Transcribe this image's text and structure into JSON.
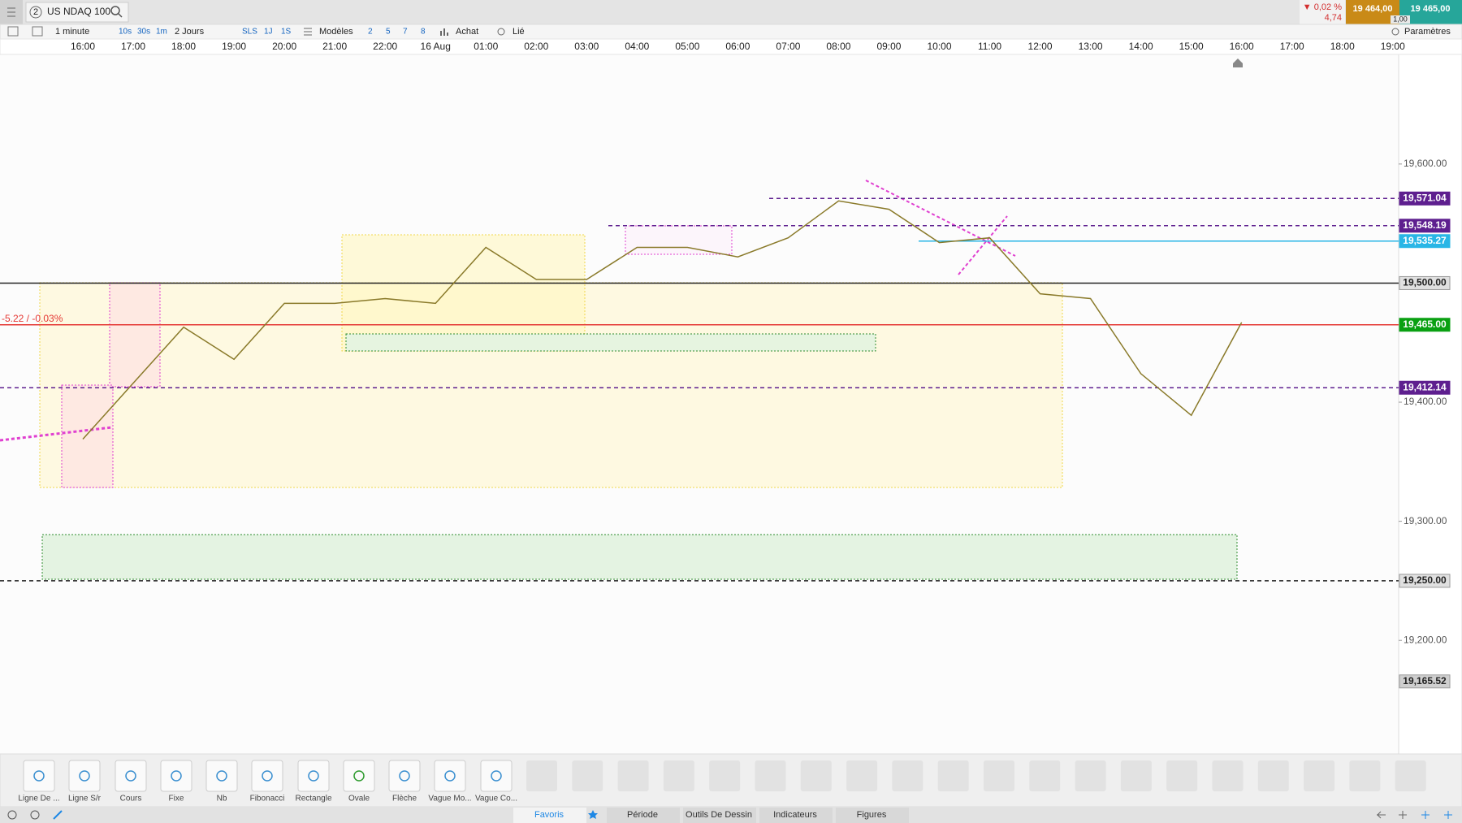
{
  "top_bar": {
    "instrument_badge": "2",
    "instrument": "US NDAQ 100",
    "change_pct": "▼ 0,02 %",
    "change_abs": "4,74",
    "sell_price": "19 464,00",
    "buy_price": "19 465,00",
    "spread": "1,00"
  },
  "settings_bar": {
    "interval": "1 minute",
    "quick_intervals": [
      "10s",
      "30s",
      "1m"
    ],
    "range": "2 Jours",
    "periods": [
      "SLS",
      "1J",
      "1S"
    ],
    "templates": "Modèles",
    "layouts": [
      "2",
      "5",
      "7",
      "8"
    ],
    "trade": "Achat",
    "linked": "Lié",
    "parameters": "Paramètres"
  },
  "chart": {
    "type": "line",
    "color": "#8a7a2a",
    "categories": [
      "16:00",
      "17:00",
      "18:00",
      "19:00",
      "20:00",
      "21:00",
      "22:00",
      "16 Aug",
      "01:00",
      "02:00",
      "03:00",
      "04:00",
      "05:00",
      "06:00",
      "07:00",
      "08:00",
      "09:00",
      "10:00",
      "11:00",
      "12:00",
      "13:00",
      "14:00",
      "15:00",
      "16:00",
      "17:00",
      "18:00",
      "19:00"
    ],
    "values": [
      19369,
      19416,
      19463,
      19436,
      19483,
      19483,
      19487,
      19483,
      19530,
      19503,
      19503,
      19530,
      19530,
      19522,
      19538,
      19569,
      19562,
      19534,
      19538,
      19491,
      19487,
      19424,
      19389,
      19467,
      null,
      null,
      null
    ],
    "ylim": [
      19106,
      19692
    ],
    "yticks": [
      {
        "value": 19600,
        "label": "19,600.00"
      },
      {
        "value": 19400,
        "label": "19,400.00"
      },
      {
        "value": 19300,
        "label": "19,300.00"
      },
      {
        "value": 19200,
        "label": "19,200.00"
      }
    ],
    "levels": [
      {
        "value": 19571.04,
        "label": "19,571.04",
        "color": "#5e1f8f",
        "line_color": "#5e1f8f",
        "style": "dashed"
      },
      {
        "value": 19548.19,
        "label": "19,548.19",
        "color": "#5e1f8f",
        "line_color": "#5e1f8f",
        "style": "dashed"
      },
      {
        "value": 19535.27,
        "label": "19,535.27",
        "color": "#29b6e6",
        "line_color": "#29b6e6",
        "style": "solid"
      },
      {
        "value": 19500,
        "label": "19,500.00",
        "color": "#e0e0e0",
        "line_color": "#222222",
        "style": "solid"
      },
      {
        "value": 19465,
        "label": "19,465.00",
        "color": "#0aa012",
        "line_color": "#e53935",
        "style": "solid"
      },
      {
        "value": 19412.14,
        "label": "19,412.14",
        "color": "#5e1f8f",
        "line_color": "#5e1f8f",
        "style": "dashed"
      },
      {
        "value": 19250,
        "label": "19,250.00",
        "color": "#e0e0e0",
        "line_color": "#222222",
        "style": "dashed"
      },
      {
        "value": 19165.52,
        "label": "19,165.52",
        "color": "#cfcfcf",
        "line_color": "none",
        "style": "none"
      }
    ],
    "change_label": "-5.22 / -0.03%"
  },
  "drawing_tools": [
    "Ligne De ...",
    "Ligne S/r",
    "Cours",
    "Fixe",
    "Nb",
    "Fibonacci",
    "Rectangle",
    "Ovale",
    "Flèche",
    "Vague Mo...",
    "Vague Co..."
  ],
  "tabs": [
    "Favoris",
    "Période",
    "Outils De Dessin",
    "Indicateurs",
    "Figures"
  ]
}
